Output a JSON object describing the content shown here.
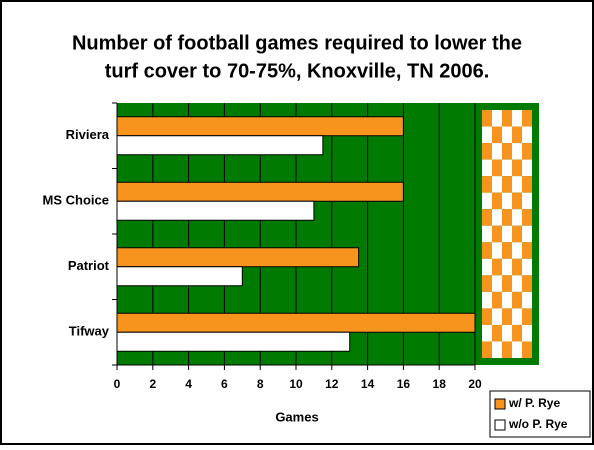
{
  "chart_data": {
    "type": "bar",
    "orientation": "horizontal",
    "title": "Number of football games required to lower the turf cover to 70-75%, Knoxville, TN 2006.",
    "title_lines": [
      "Number of football games required to lower the",
      "turf cover to 70-75%, Knoxville, TN 2006."
    ],
    "xlabel": "Games",
    "categories": [
      "Riviera",
      "MS Choice",
      "Patriot",
      "Tifway"
    ],
    "series": [
      {
        "name": "w/ P. Rye",
        "color": "#f7941d",
        "values": [
          16,
          16,
          13.5,
          20
        ]
      },
      {
        "name": "w/o P. Rye",
        "color": "#ffffff",
        "values": [
          11.5,
          11,
          7,
          13
        ]
      }
    ],
    "xlim": [
      0,
      20
    ],
    "xticks": [
      0,
      2,
      4,
      6,
      8,
      10,
      12,
      14,
      16,
      18,
      20
    ],
    "grid": true,
    "background": "#007a00",
    "legend": "bottom-right"
  }
}
